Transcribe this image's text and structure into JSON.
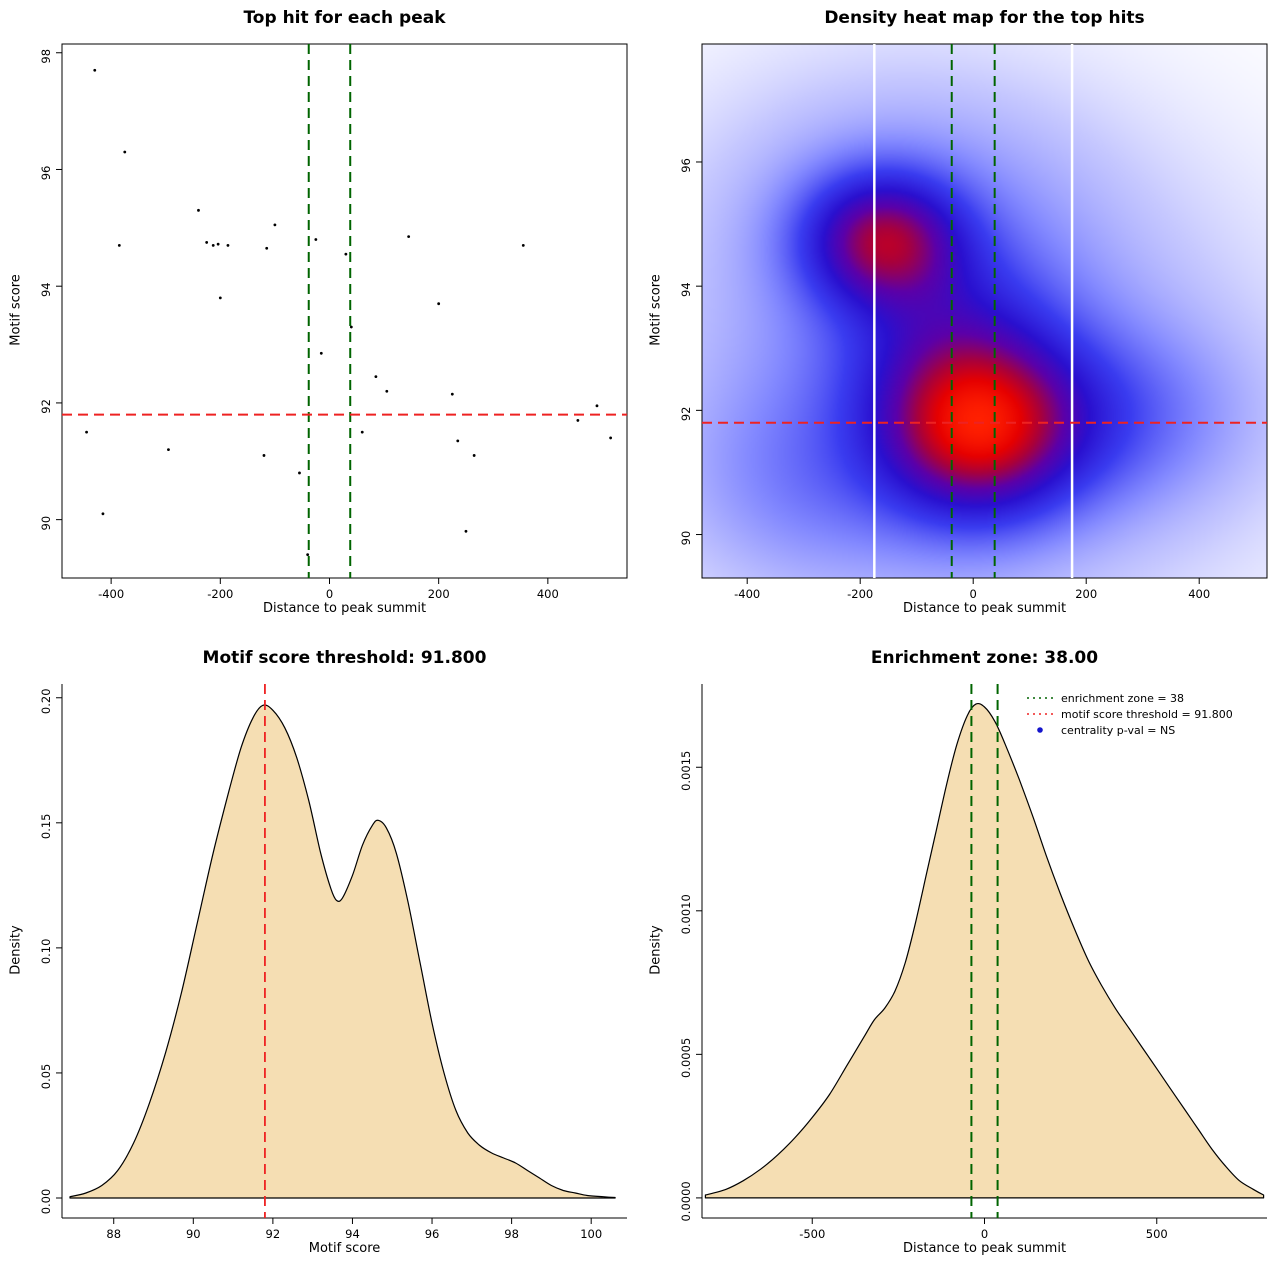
{
  "figure": {
    "background": "#ffffff"
  },
  "chart_data": [
    {
      "id": "top-hit-scatter",
      "type": "scatter",
      "title": "Top hit for each peak",
      "xlabel": "Distance to peak summit",
      "ylabel": "Motif score",
      "xlim": [
        -490,
        545
      ],
      "ylim": [
        89.0,
        98.15
      ],
      "xticks": [
        -400,
        -200,
        0,
        200,
        400
      ],
      "yticks": [
        90,
        92,
        94,
        96,
        98
      ],
      "frame": "box",
      "point_color": "#000000",
      "points": [
        [
          -430,
          97.7
        ],
        [
          -375,
          96.3
        ],
        [
          -385,
          94.7
        ],
        [
          -240,
          95.3
        ],
        [
          -225,
          94.75
        ],
        [
          -213,
          94.7
        ],
        [
          -204,
          94.72
        ],
        [
          -186,
          94.7
        ],
        [
          -200,
          93.8
        ],
        [
          -115,
          94.65
        ],
        [
          -100,
          95.05
        ],
        [
          -25,
          94.8
        ],
        [
          30,
          94.55
        ],
        [
          -15,
          92.85
        ],
        [
          40,
          93.3
        ],
        [
          145,
          94.85
        ],
        [
          85,
          92.45
        ],
        [
          105,
          92.2
        ],
        [
          200,
          93.7
        ],
        [
          225,
          92.15
        ],
        [
          355,
          94.7
        ],
        [
          490,
          91.95
        ],
        [
          455,
          91.7
        ],
        [
          -445,
          91.5
        ],
        [
          -295,
          91.2
        ],
        [
          -120,
          91.1
        ],
        [
          60,
          91.5
        ],
        [
          235,
          91.35
        ],
        [
          265,
          91.1
        ],
        [
          -415,
          90.1
        ],
        [
          -55,
          90.8
        ],
        [
          250,
          89.8
        ],
        [
          -40,
          89.4
        ],
        [
          515,
          91.4
        ]
      ],
      "hline": {
        "y": 91.8,
        "color": "#ee2222",
        "style": "dashed",
        "width": 2
      },
      "vlines": [
        {
          "x": -38,
          "color": "#006400",
          "style": "dashed",
          "width": 2
        },
        {
          "x": 38,
          "color": "#006400",
          "style": "dashed",
          "width": 2
        }
      ]
    },
    {
      "id": "density-heatmap",
      "type": "heatmap",
      "title": "Density heat map for the top hits",
      "xlabel": "Distance to peak summit",
      "ylabel": "Motif score",
      "xlim": [
        -480,
        520
      ],
      "ylim": [
        89.3,
        97.9
      ],
      "xticks": [
        -400,
        -200,
        0,
        200,
        400
      ],
      "yticks": [
        90,
        92,
        94,
        96
      ],
      "frame": "box",
      "kernels": [
        {
          "x": 5,
          "y": 91.65,
          "sx": 115,
          "sy": 0.95,
          "w": 1.0
        },
        {
          "x": -160,
          "y": 94.75,
          "sx": 95,
          "sy": 0.72,
          "w": 0.9
        },
        {
          "x": -40,
          "y": 93.2,
          "sx": 130,
          "sy": 1.05,
          "w": 0.35
        },
        {
          "x": 170,
          "y": 91.9,
          "sx": 180,
          "sy": 0.95,
          "w": 0.32
        },
        {
          "x": -30,
          "y": 92.2,
          "sx": 330,
          "sy": 2.3,
          "w": 0.26
        },
        {
          "x": -120,
          "y": 95.3,
          "sx": 230,
          "sy": 1.5,
          "w": 0.16
        },
        {
          "x": -290,
          "y": 90.9,
          "sx": 150,
          "sy": 1.1,
          "w": 0.16
        }
      ],
      "colormap": [
        [
          0.0,
          "#ffffff"
        ],
        [
          0.1,
          "#c6c8ff"
        ],
        [
          0.24,
          "#8288ff"
        ],
        [
          0.4,
          "#3a3cf0"
        ],
        [
          0.55,
          "#2a10cf"
        ],
        [
          0.68,
          "#5c00a8"
        ],
        [
          0.8,
          "#a8003c"
        ],
        [
          0.9,
          "#e60000"
        ],
        [
          1.0,
          "#ff2000"
        ]
      ],
      "white_vlines": [
        -175,
        175
      ],
      "hline": {
        "y": 91.8,
        "color": "#ee2222",
        "style": "dashed",
        "width": 2
      },
      "vlines": [
        {
          "x": -38,
          "color": "#006400",
          "style": "dashed",
          "width": 2
        },
        {
          "x": 38,
          "color": "#006400",
          "style": "dashed",
          "width": 2
        }
      ]
    },
    {
      "id": "motif-score-density",
      "type": "area",
      "title": "Motif score threshold: 91.800",
      "xlabel": "Motif score",
      "ylabel": "Density",
      "xlim": [
        86.7,
        100.9
      ],
      "ylim": [
        -0.008,
        0.2055
      ],
      "xticks": [
        88,
        90,
        92,
        94,
        96,
        98,
        100
      ],
      "yticks": [
        0,
        0.05,
        0.1,
        0.15,
        0.2
      ],
      "ytick_labels": [
        "0.00",
        "0.05",
        "0.10",
        "0.15",
        "0.20"
      ],
      "frame": "axes",
      "fill": "#f5deb3",
      "curve": [
        [
          86.9,
          0.0005
        ],
        [
          87.3,
          0.002
        ],
        [
          87.7,
          0.005
        ],
        [
          88.1,
          0.011
        ],
        [
          88.5,
          0.022
        ],
        [
          88.9,
          0.038
        ],
        [
          89.3,
          0.058
        ],
        [
          89.7,
          0.082
        ],
        [
          90.1,
          0.11
        ],
        [
          90.5,
          0.138
        ],
        [
          90.9,
          0.163
        ],
        [
          91.2,
          0.18
        ],
        [
          91.5,
          0.192
        ],
        [
          91.75,
          0.197
        ],
        [
          92.0,
          0.195
        ],
        [
          92.3,
          0.188
        ],
        [
          92.6,
          0.176
        ],
        [
          92.9,
          0.159
        ],
        [
          93.2,
          0.138
        ],
        [
          93.45,
          0.124
        ],
        [
          93.6,
          0.119
        ],
        [
          93.75,
          0.12
        ],
        [
          94.0,
          0.129
        ],
        [
          94.25,
          0.141
        ],
        [
          94.5,
          0.149
        ],
        [
          94.65,
          0.151
        ],
        [
          94.85,
          0.148
        ],
        [
          95.1,
          0.138
        ],
        [
          95.4,
          0.118
        ],
        [
          95.7,
          0.094
        ],
        [
          96.0,
          0.07
        ],
        [
          96.3,
          0.05
        ],
        [
          96.6,
          0.035
        ],
        [
          96.9,
          0.026
        ],
        [
          97.2,
          0.021
        ],
        [
          97.5,
          0.018
        ],
        [
          97.8,
          0.016
        ],
        [
          98.1,
          0.014
        ],
        [
          98.4,
          0.011
        ],
        [
          98.7,
          0.008
        ],
        [
          99.0,
          0.005
        ],
        [
          99.3,
          0.003
        ],
        [
          99.6,
          0.002
        ],
        [
          99.9,
          0.001
        ],
        [
          100.3,
          0.0005
        ],
        [
          100.6,
          0.0002
        ]
      ],
      "vlines": [
        {
          "x": 91.8,
          "color": "#ee2222",
          "style": "dashed",
          "width": 1.8
        }
      ]
    },
    {
      "id": "summit-distance-density",
      "type": "area",
      "title": "Enrichment zone: 38.00",
      "xlabel": "Distance to peak summit",
      "ylabel": "Density",
      "xlim": [
        -820,
        820
      ],
      "ylim": [
        -7e-05,
        0.00179
      ],
      "xticks": [
        -500,
        0,
        500
      ],
      "yticks": [
        0,
        0.0005,
        0.001,
        0.0015
      ],
      "ytick_labels": [
        "0.0000",
        "0.0005",
        "0.0010",
        "0.0015"
      ],
      "frame": "axes",
      "fill": "#f5deb3",
      "curve": [
        [
          -810,
          1e-05
        ],
        [
          -750,
          3e-05
        ],
        [
          -700,
          6e-05
        ],
        [
          -650,
          0.0001
        ],
        [
          -600,
          0.00015
        ],
        [
          -550,
          0.00021
        ],
        [
          -500,
          0.00028
        ],
        [
          -450,
          0.00036
        ],
        [
          -400,
          0.00046
        ],
        [
          -350,
          0.00056
        ],
        [
          -320,
          0.00062
        ],
        [
          -290,
          0.00066
        ],
        [
          -260,
          0.00072
        ],
        [
          -230,
          0.00082
        ],
        [
          -200,
          0.00096
        ],
        [
          -170,
          0.00112
        ],
        [
          -140,
          0.00128
        ],
        [
          -110,
          0.00144
        ],
        [
          -80,
          0.00158
        ],
        [
          -50,
          0.00168
        ],
        [
          -25,
          0.00172
        ],
        [
          0,
          0.00171
        ],
        [
          30,
          0.00166
        ],
        [
          60,
          0.00158
        ],
        [
          100,
          0.00146
        ],
        [
          140,
          0.00133
        ],
        [
          180,
          0.00119
        ],
        [
          220,
          0.00106
        ],
        [
          260,
          0.00094
        ],
        [
          300,
          0.00083
        ],
        [
          340,
          0.00074
        ],
        [
          380,
          0.00066
        ],
        [
          420,
          0.00059
        ],
        [
          460,
          0.00052
        ],
        [
          500,
          0.00045
        ],
        [
          540,
          0.00038
        ],
        [
          580,
          0.00031
        ],
        [
          620,
          0.00024
        ],
        [
          660,
          0.00017
        ],
        [
          700,
          0.00011
        ],
        [
          740,
          6e-05
        ],
        [
          780,
          3e-05
        ],
        [
          810,
          1e-05
        ]
      ],
      "vlines": [
        {
          "x": -38,
          "color": "#006400",
          "style": "dashed",
          "width": 2
        },
        {
          "x": 38,
          "color": "#006400",
          "style": "dashed",
          "width": 2
        }
      ],
      "legend": {
        "items": [
          {
            "label": "enrichment zone = 38",
            "swatch": "line",
            "color": "#006400",
            "dash": "dotted"
          },
          {
            "label": "motif score threshold = 91.800",
            "swatch": "line",
            "color": "#ee2222",
            "dash": "dotted"
          },
          {
            "label": "centrality p-val = NS",
            "swatch": "point",
            "color": "#1515cc"
          }
        ]
      }
    }
  ]
}
